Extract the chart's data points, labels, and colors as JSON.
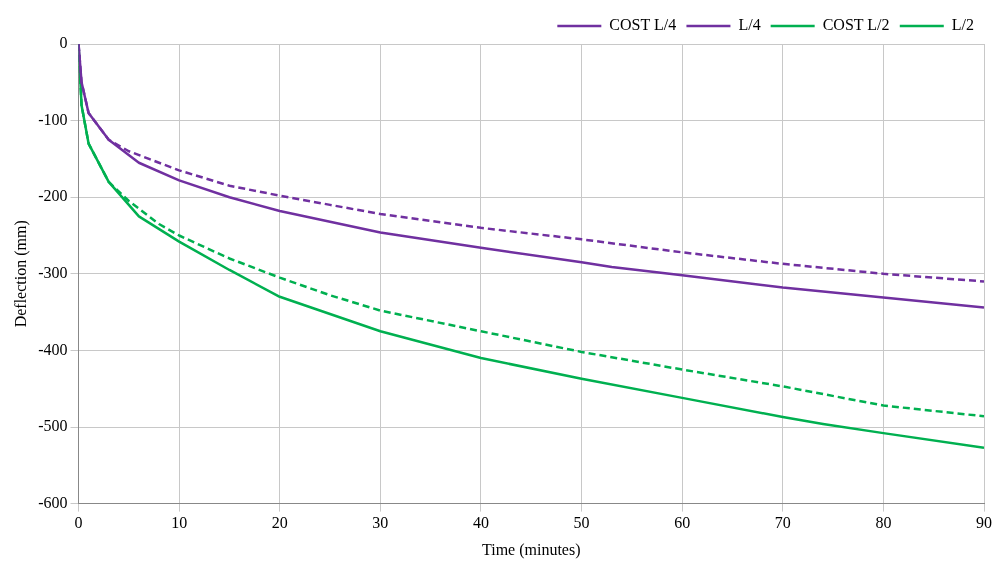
{
  "chart_data": {
    "type": "line",
    "xlabel": "Time (minutes)",
    "ylabel": "Deflection (mm)",
    "xlim": [
      0,
      90
    ],
    "xticks": [
      0,
      10,
      20,
      30,
      40,
      50,
      60,
      70,
      80,
      90
    ],
    "ylim": [
      -600,
      0
    ],
    "yticks": [
      -600,
      -500,
      -400,
      -300,
      -200,
      -100,
      0
    ],
    "grid": true,
    "legend": "top right",
    "marker": "none",
    "series": [
      {
        "name": "COST L/4",
        "color": "#7030a0",
        "line_style": "dashed",
        "x": [
          0,
          0.3,
          1,
          3,
          5,
          7,
          10,
          15,
          20,
          25,
          30,
          40,
          50,
          60,
          70,
          80,
          90
        ],
        "values": [
          0,
          -50,
          -90,
          -125,
          -140,
          -150,
          -165,
          -185,
          -198,
          -210,
          -222,
          -240,
          -255,
          -272,
          -287,
          -300,
          -310
        ]
      },
      {
        "name": "L/4",
        "color": "#7030a0",
        "line_style": "solid",
        "x": [
          0,
          0.3,
          1,
          3,
          6,
          10,
          15,
          20,
          30,
          40,
          50,
          53,
          60,
          70,
          80,
          90
        ],
        "values": [
          0,
          -50,
          -90,
          -125,
          -155,
          -178,
          -200,
          -218,
          -246,
          -266,
          -285,
          -291,
          -302,
          -318,
          -331,
          -344
        ]
      },
      {
        "name": "COST L/2",
        "color": "#00b050",
        "line_style": "dashed",
        "x": [
          0,
          0.3,
          1,
          3,
          5,
          8,
          10,
          15,
          20,
          25,
          30,
          40,
          50,
          60,
          70,
          80,
          90
        ],
        "values": [
          0,
          -80,
          -130,
          -180,
          -205,
          -235,
          -250,
          -280,
          -305,
          -328,
          -348,
          -375,
          -402,
          -425,
          -447,
          -472,
          -486
        ]
      },
      {
        "name": "L/2",
        "color": "#00b050",
        "line_style": "solid",
        "x": [
          0,
          0.3,
          1,
          3,
          6,
          10,
          15,
          20,
          30,
          40,
          50,
          60,
          70,
          74,
          80,
          90
        ],
        "values": [
          0,
          -80,
          -130,
          -180,
          -225,
          -258,
          -295,
          -330,
          -375,
          -410,
          -437,
          -462,
          -487,
          -496,
          -508,
          -527
        ]
      }
    ]
  }
}
